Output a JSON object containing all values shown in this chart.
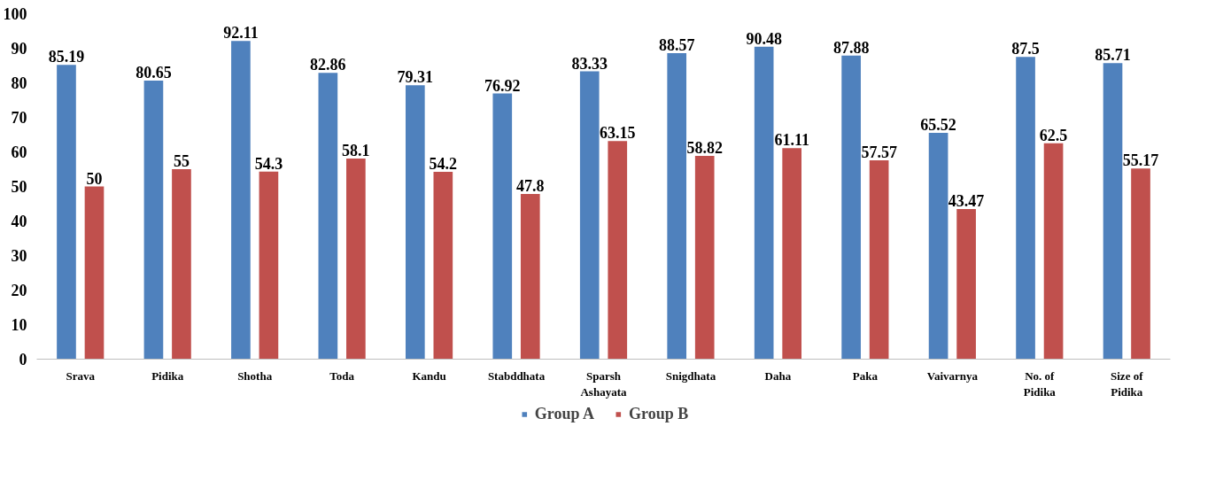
{
  "chart_data": {
    "type": "bar",
    "categories": [
      "Srava",
      "Pidika",
      "Shotha",
      "Toda",
      "Kandu",
      "Stabddhata",
      "Sparsh Ashayata",
      "Snigdhata",
      "Daha",
      "Paka",
      "Vaivarnya",
      "No. of Pidika",
      "Size of Pidika"
    ],
    "series": [
      {
        "name": "Group A",
        "color": "#4f81bd",
        "values": [
          85.19,
          80.65,
          92.11,
          82.86,
          79.31,
          76.92,
          83.33,
          88.57,
          90.48,
          87.88,
          65.52,
          87.5,
          85.71
        ]
      },
      {
        "name": "Group B",
        "color": "#c0504d",
        "values": [
          50,
          55,
          54.3,
          58.1,
          54.2,
          47.8,
          63.15,
          58.82,
          61.11,
          57.57,
          43.47,
          62.5,
          55.17
        ]
      }
    ],
    "ylim": [
      0,
      100
    ],
    "yticks": [
      0,
      10,
      20,
      30,
      40,
      50,
      60,
      70,
      80,
      90,
      100
    ],
    "data_labels": true,
    "grid": false,
    "legend": "bottom"
  }
}
